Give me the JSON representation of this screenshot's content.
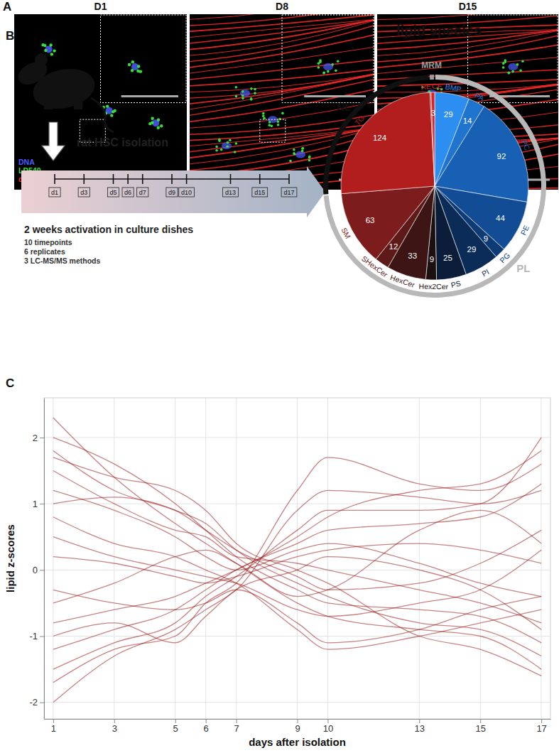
{
  "panel_a": {
    "label": "A",
    "images": [
      {
        "title": "D1"
      },
      {
        "title": "D8"
      },
      {
        "title": "D15"
      }
    ],
    "channels": [
      {
        "name": "DNA",
        "color": "#4a5cff"
      },
      {
        "name": "LD540",
        "color": "#35e03a"
      },
      {
        "name": "α-SMA",
        "color": "#ff2a2a"
      }
    ]
  },
  "panel_b": {
    "label": "B",
    "isolation": "rat HSC isolation",
    "timeline": {
      "days": [
        1,
        3,
        5,
        6,
        7,
        9,
        10,
        13,
        15,
        17
      ],
      "labels": [
        "d1",
        "d3",
        "d5",
        "d6",
        "d7",
        "d9",
        "d10",
        "d13",
        "d15",
        "d17"
      ],
      "title": "2 weeks activation in culture dishes",
      "details": [
        "10 timepoints",
        "6 replicates",
        "3 LC-MS/MS methods"
      ]
    }
  },
  "panel_c": {
    "label": "C"
  },
  "chart_data": [
    {
      "type": "pie",
      "title": "lipid species",
      "categories": [
        "BMP",
        "PA",
        "PC",
        "PE",
        "PG",
        "PI",
        "PS",
        "Hex2Cer",
        "HexCer",
        "SHexCer",
        "SM",
        "TG",
        "RE",
        "CE"
      ],
      "values": [
        29,
        14,
        92,
        44,
        9,
        29,
        25,
        9,
        33,
        12,
        63,
        124,
        1,
        3
      ],
      "colors": [
        "#2b8ef0",
        "#1f74cf",
        "#1760b4",
        "#114c94",
        "#0d3b75",
        "#0b2c57",
        "#0b1d38",
        "#1d1010",
        "#3d1515",
        "#5e1919",
        "#7d1c1c",
        "#b21d1d",
        "#c62222",
        "#d42626"
      ],
      "data_labels": true,
      "value_labels": [
        "29",
        "14",
        "92",
        "44",
        "9",
        "29",
        "25",
        "9",
        "33",
        "12",
        "63",
        "124",
        null,
        "3"
      ],
      "groups": [
        {
          "name": "PL",
          "color": "#b8b8b8",
          "members": [
            "BMP",
            "PA",
            "PC",
            "PE",
            "PG",
            "PI",
            "PS",
            "Hex2Cer",
            "HexCer",
            "SHexCer",
            "SM"
          ]
        },
        {
          "name": "NL",
          "color": "#111111",
          "members": [
            "TG"
          ]
        },
        {
          "name": "MRM",
          "color": "#9a9a9a",
          "members": [
            "RE",
            "CE"
          ]
        }
      ]
    },
    {
      "type": "line",
      "xlabel": "days after isolation",
      "ylabel": "lipid z-scores",
      "x": [
        1,
        3,
        5,
        6,
        7,
        9,
        10,
        13,
        15,
        17
      ],
      "xlim": [
        0.7,
        17.3
      ],
      "xticks": [
        1,
        3,
        5,
        6,
        7,
        9,
        10,
        13,
        15,
        17
      ],
      "ylim": [
        -2.25,
        2.6
      ],
      "yticks": [
        -2,
        -1,
        0,
        1,
        2
      ],
      "grid": true,
      "color": "#9b1b1b",
      "series": [
        {
          "values": [
            2.3,
            1.4,
            0.7,
            0.4,
            0.1,
            -0.5,
            -0.7,
            -0.9,
            -1.0,
            -1.5
          ]
        },
        {
          "values": [
            2.0,
            1.6,
            1.0,
            0.6,
            0.2,
            -0.3,
            -0.5,
            -0.6,
            -0.7,
            -1.1
          ]
        },
        {
          "values": [
            1.8,
            1.2,
            0.9,
            0.7,
            0.3,
            -0.2,
            -0.4,
            -0.8,
            -0.9,
            -1.3
          ]
        },
        {
          "values": [
            1.5,
            1.0,
            0.6,
            0.5,
            0.2,
            0.1,
            0.0,
            -0.3,
            -0.5,
            -0.8
          ]
        },
        {
          "values": [
            1.2,
            0.9,
            0.5,
            0.2,
            0.0,
            0.3,
            0.4,
            0.1,
            -0.2,
            -0.4
          ]
        },
        {
          "values": [
            -2.0,
            -1.3,
            -0.9,
            -0.6,
            -0.3,
            0.9,
            1.2,
            1.1,
            1.0,
            1.2
          ]
        },
        {
          "values": [
            -1.7,
            -1.2,
            -1.0,
            -0.5,
            -0.2,
            1.2,
            1.7,
            1.3,
            1.2,
            1.6
          ]
        },
        {
          "values": [
            -1.5,
            -1.1,
            -0.8,
            -0.4,
            -0.1,
            0.6,
            0.9,
            0.9,
            1.0,
            2.0
          ]
        },
        {
          "values": [
            -1.2,
            -0.9,
            -0.6,
            -0.3,
            0.0,
            0.4,
            0.6,
            0.7,
            0.8,
            1.3
          ]
        },
        {
          "values": [
            -0.8,
            -0.6,
            -0.4,
            -0.2,
            0.0,
            0.5,
            0.8,
            1.2,
            1.3,
            1.8
          ]
        },
        {
          "values": [
            0.5,
            0.2,
            0.0,
            -0.1,
            -0.2,
            -0.6,
            -0.7,
            -0.5,
            -0.3,
            0.3
          ]
        },
        {
          "values": [
            0.2,
            0.1,
            -0.1,
            -0.2,
            -0.1,
            0.2,
            0.3,
            0.4,
            0.3,
            0.1
          ]
        },
        {
          "values": [
            -0.3,
            -0.5,
            -0.6,
            -0.5,
            -0.3,
            -0.8,
            -1.1,
            -0.9,
            -0.6,
            -0.4
          ]
        },
        {
          "values": [
            1.0,
            1.1,
            0.9,
            0.6,
            0.3,
            -0.1,
            -0.3,
            -0.2,
            0.1,
            0.6
          ]
        },
        {
          "values": [
            -1.0,
            -0.8,
            -1.1,
            -0.7,
            -0.3,
            0.0,
            0.2,
            0.0,
            -0.3,
            -0.9
          ]
        },
        {
          "values": [
            0.8,
            0.4,
            0.2,
            0.0,
            -0.2,
            -0.9,
            -1.2,
            -1.0,
            -0.8,
            -0.6
          ]
        },
        {
          "values": [
            -0.5,
            -0.2,
            0.2,
            0.3,
            0.1,
            -0.4,
            -0.3,
            0.6,
            0.9,
            0.4
          ]
        },
        {
          "values": [
            1.7,
            1.4,
            1.2,
            0.9,
            0.4,
            0.0,
            -0.2,
            -1.0,
            -1.2,
            -1.6
          ]
        }
      ]
    }
  ]
}
